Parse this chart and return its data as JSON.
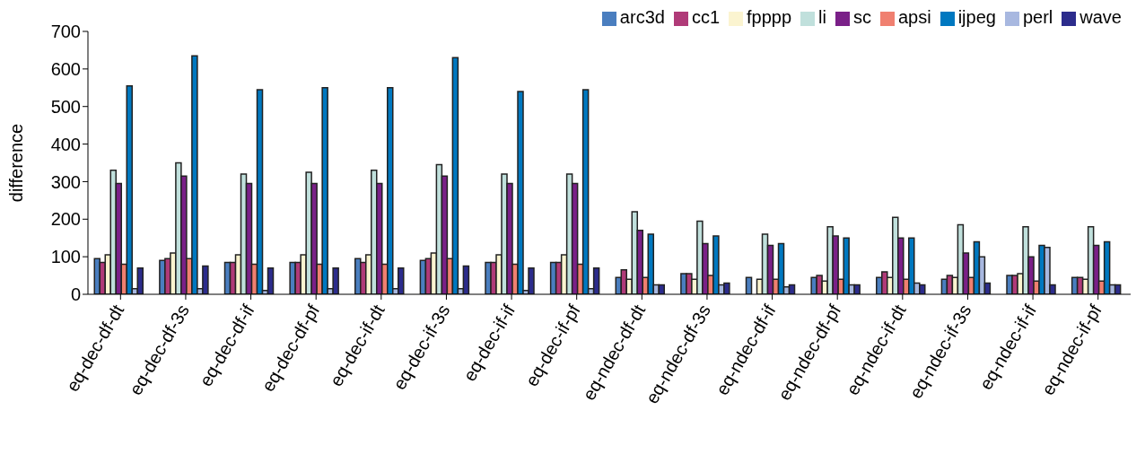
{
  "chart_data": {
    "type": "bar",
    "ylabel": "difference",
    "categories": [
      "eq-dec-df-dt",
      "eq-dec-df-3s",
      "eq-dec-df-if",
      "eq-dec-df-pf",
      "eq-dec-if-dt",
      "eq-dec-if-3s",
      "eq-dec-if-if",
      "eq-dec-if-pf",
      "eq-ndec-df-dt",
      "eq-ndec-df-3s",
      "eq-ndec-df-if",
      "eq-ndec-df-pf",
      "eq-ndec-if-dt",
      "eq-ndec-if-3s",
      "eq-ndec-if-if",
      "eq-ndec-if-pf"
    ],
    "series": [
      {
        "name": "arc3d",
        "color": "#4a7ebf",
        "values": [
          95,
          90,
          85,
          85,
          95,
          90,
          85,
          85,
          45,
          55,
          45,
          45,
          45,
          40,
          50,
          45
        ]
      },
      {
        "name": "cc1",
        "color": "#b03a78",
        "values": [
          85,
          95,
          85,
          85,
          85,
          95,
          85,
          85,
          65,
          55,
          0,
          50,
          60,
          50,
          50,
          45
        ]
      },
      {
        "name": "fpppp",
        "color": "#fbf4d0",
        "values": [
          105,
          110,
          105,
          105,
          105,
          110,
          105,
          105,
          40,
          40,
          40,
          35,
          45,
          45,
          55,
          40
        ]
      },
      {
        "name": "li",
        "color": "#c0e0dc",
        "values": [
          330,
          350,
          320,
          325,
          330,
          345,
          320,
          320,
          220,
          195,
          160,
          180,
          205,
          185,
          180,
          180
        ]
      },
      {
        "name": "sc",
        "color": "#7a2088",
        "values": [
          295,
          315,
          295,
          295,
          295,
          315,
          295,
          295,
          170,
          135,
          130,
          155,
          150,
          110,
          100,
          130
        ]
      },
      {
        "name": "apsi",
        "color": "#f08070",
        "values": [
          80,
          95,
          80,
          80,
          80,
          95,
          80,
          80,
          45,
          50,
          40,
          40,
          40,
          45,
          35,
          35
        ]
      },
      {
        "name": "ijpeg",
        "color": "#0078c0",
        "values": [
          555,
          635,
          545,
          550,
          550,
          630,
          540,
          545,
          160,
          155,
          135,
          150,
          150,
          140,
          130,
          140
        ]
      },
      {
        "name": "perl",
        "color": "#a8b8e0",
        "values": [
          15,
          15,
          10,
          15,
          15,
          15,
          10,
          15,
          25,
          25,
          20,
          25,
          30,
          100,
          125,
          25
        ]
      },
      {
        "name": "wave",
        "color": "#2c2c8c",
        "values": [
          70,
          75,
          70,
          70,
          70,
          75,
          70,
          70,
          25,
          30,
          25,
          25,
          25,
          30,
          25,
          25
        ]
      }
    ],
    "ylim": [
      0,
      700
    ],
    "yticks": [
      0,
      100,
      200,
      300,
      400,
      500,
      600,
      700
    ],
    "legend": "top right"
  }
}
